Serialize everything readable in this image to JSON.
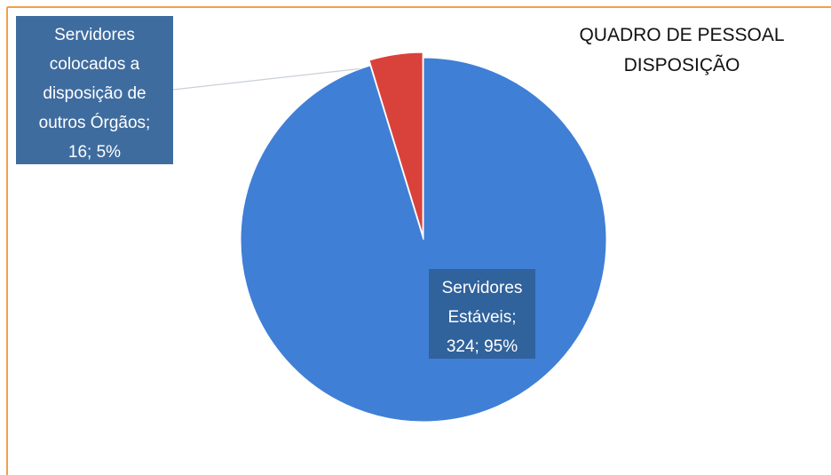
{
  "chart_data": {
    "type": "pie",
    "title": [
      "QUADRO DE PESSOAL",
      "DISPOSIÇÃO"
    ],
    "categories": [
      "Servidores Estáveis;",
      "Servidores colocados a disposição de outros Órgãos;"
    ],
    "values": [
      324,
      16
    ],
    "value_labels": [
      "324; 95%",
      "16; 5%"
    ],
    "colors": [
      "#3f7fd6",
      "#d9423b"
    ]
  }
}
